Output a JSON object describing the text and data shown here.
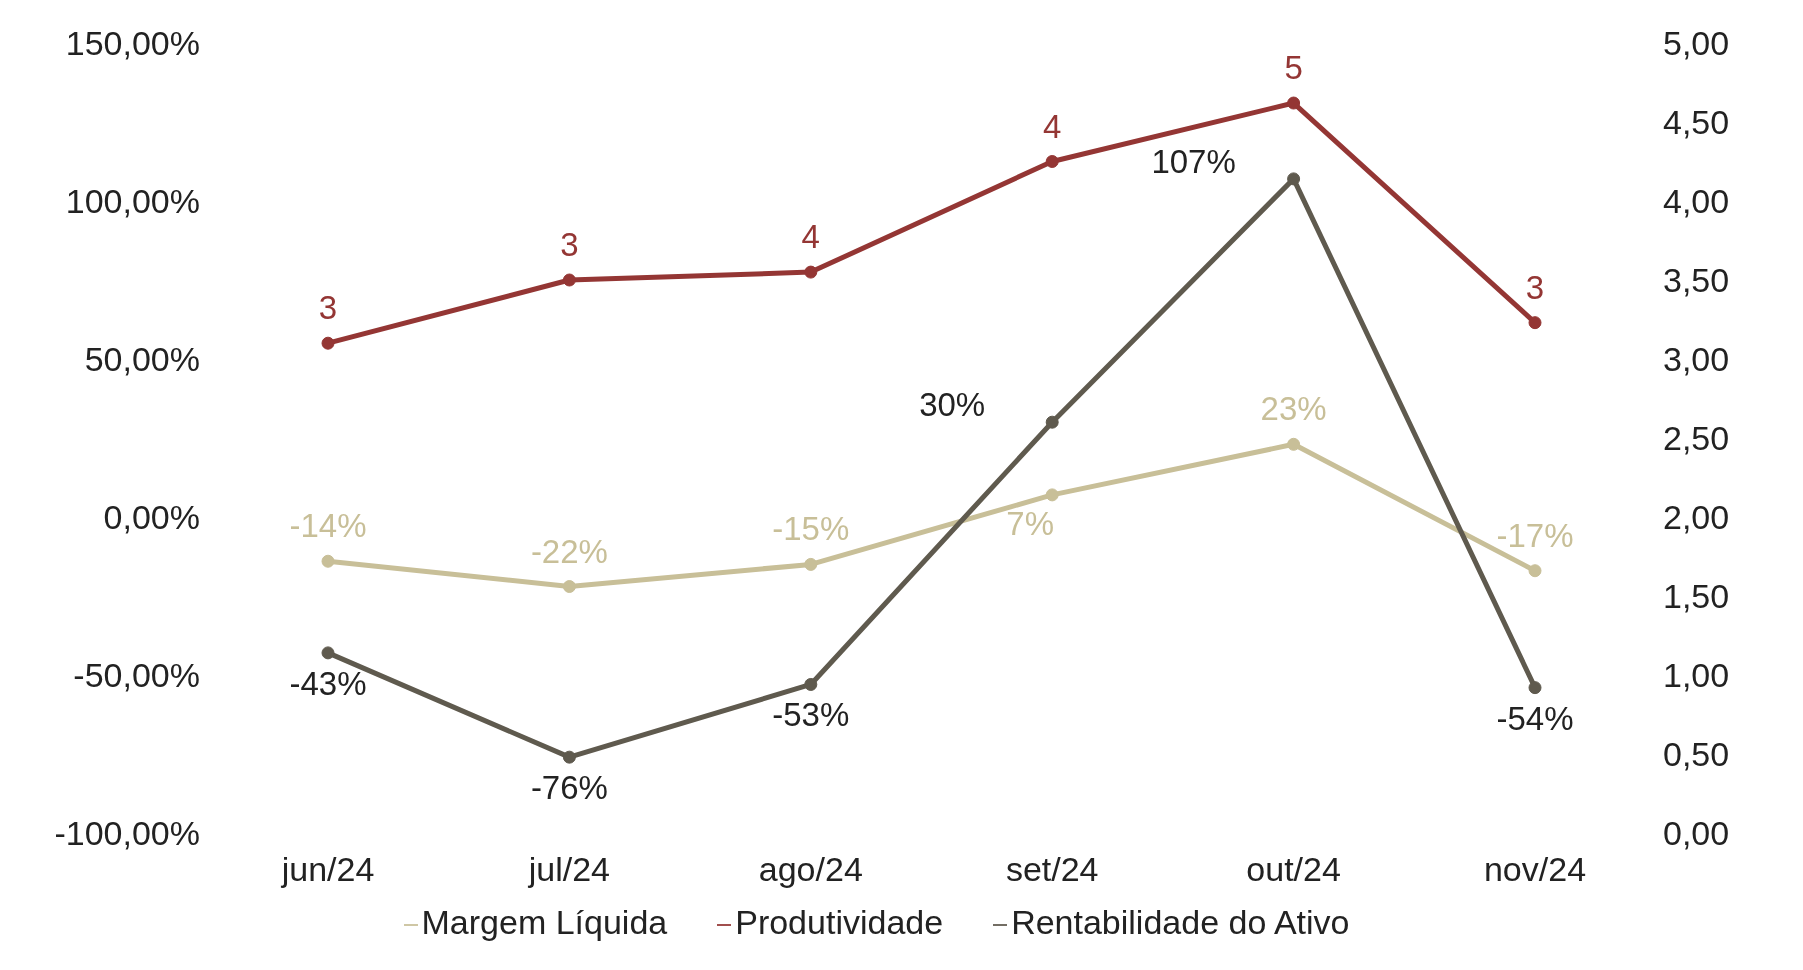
{
  "chart_data": {
    "type": "line",
    "categories": [
      "jun/24",
      "jul/24",
      "ago/24",
      "set/24",
      "out/24",
      "nov/24"
    ],
    "series": [
      {
        "name": "Margem Líquida",
        "color": "#c8bf98",
        "values": [
          -14,
          -22,
          -15,
          7,
          23,
          -17
        ],
        "value_labels": [
          "-14%",
          "-22%",
          "-15%",
          "7%",
          "23%",
          "-17%"
        ]
      },
      {
        "name": "Rentabilidade do Ativo",
        "color": "#5f5a4e",
        "values": [
          -43,
          -76,
          -53,
          30,
          107,
          -54
        ],
        "value_labels": [
          "-43%",
          "-76%",
          "-53%",
          "30%",
          "107%",
          "-54%"
        ]
      },
      {
        "name": "Produtividade",
        "color": "#943634",
        "axis": "y2",
        "values": [
          3.1,
          3.5,
          3.55,
          4.25,
          4.62,
          3.23
        ],
        "value_labels": [
          "3",
          "3",
          "4",
          "4",
          "5",
          "3"
        ]
      }
    ],
    "ylim": [
      -100,
      150
    ],
    "yticks": [
      {
        "value": -100,
        "label": "-100,00%"
      },
      {
        "value": -50,
        "label": "-50,00%"
      },
      {
        "value": 0,
        "label": "0,00%"
      },
      {
        "value": 50,
        "label": "50,00%"
      },
      {
        "value": 100,
        "label": "100,00%"
      },
      {
        "value": 150,
        "label": "150,00%"
      }
    ],
    "y2lim": [
      0,
      5
    ],
    "y2ticks": [
      {
        "value": 0,
        "label": "0,00"
      },
      {
        "value": 0.5,
        "label": "0,50"
      },
      {
        "value": 1,
        "label": "1,00"
      },
      {
        "value": 1.5,
        "label": "1,50"
      },
      {
        "value": 2,
        "label": "2,00"
      },
      {
        "value": 2.5,
        "label": "2,50"
      },
      {
        "value": 3,
        "label": "3,00"
      },
      {
        "value": 3.5,
        "label": "3,50"
      },
      {
        "value": 4,
        "label": "4,00"
      },
      {
        "value": 4.5,
        "label": "4,50"
      },
      {
        "value": 5,
        "label": "5,00"
      }
    ],
    "grid": false,
    "legend": "bottom",
    "marker": "circle",
    "line_style": "solid"
  }
}
